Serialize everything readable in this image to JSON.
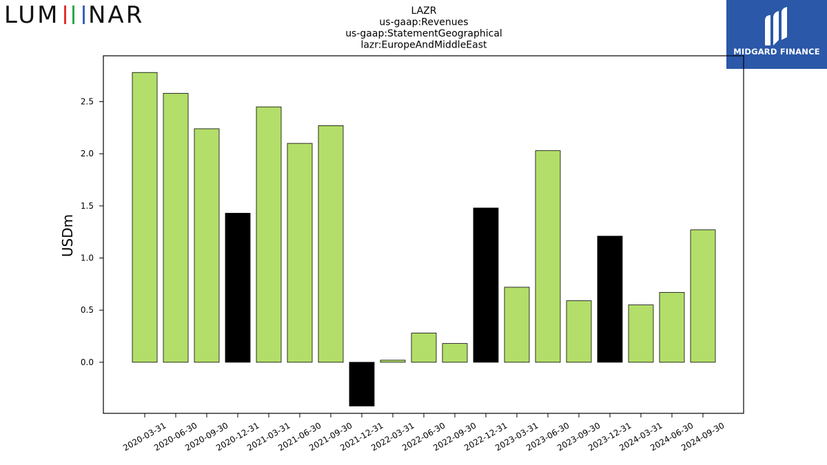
{
  "logo": {
    "left_text": "LUMINAR",
    "right_text": "MIDGARD FINANCE"
  },
  "colors": {
    "positive": "#b3de69",
    "highlight": "#000000",
    "badge": "#2b58a8"
  },
  "chart_data": {
    "type": "bar",
    "title": [
      "LAZR",
      "us-gaap:Revenues",
      "us-gaap:StatementGeographical",
      "lazr:EuropeAndMiddleEast"
    ],
    "xlabel": "",
    "ylabel": "USDm",
    "ylim": [
      -0.49,
      2.94
    ],
    "yticks": [
      0.0,
      0.5,
      1.0,
      1.5,
      2.0,
      2.5
    ],
    "ytick_labels": [
      "0.0",
      "0.5",
      "1.0",
      "1.5",
      "2.0",
      "2.5"
    ],
    "grid": false,
    "categories": [
      "2020-03-31",
      "2020-06-30",
      "2020-09-30",
      "2020-12-31",
      "2021-03-31",
      "2021-06-30",
      "2021-09-30",
      "2021-12-31",
      "2022-03-31",
      "2022-06-30",
      "2022-09-30",
      "2022-12-31",
      "2023-03-31",
      "2023-06-30",
      "2023-09-30",
      "2023-12-31",
      "2024-03-31",
      "2024-06-30",
      "2024-09-30"
    ],
    "values": [
      2.78,
      2.58,
      2.24,
      1.43,
      2.45,
      2.1,
      2.27,
      -0.42,
      0.02,
      0.28,
      0.18,
      1.48,
      0.72,
      2.03,
      0.59,
      1.21,
      0.55,
      0.67,
      1.27
    ],
    "highlight": [
      false,
      false,
      false,
      true,
      false,
      false,
      false,
      true,
      false,
      false,
      false,
      true,
      false,
      false,
      false,
      true,
      false,
      false,
      false
    ]
  }
}
